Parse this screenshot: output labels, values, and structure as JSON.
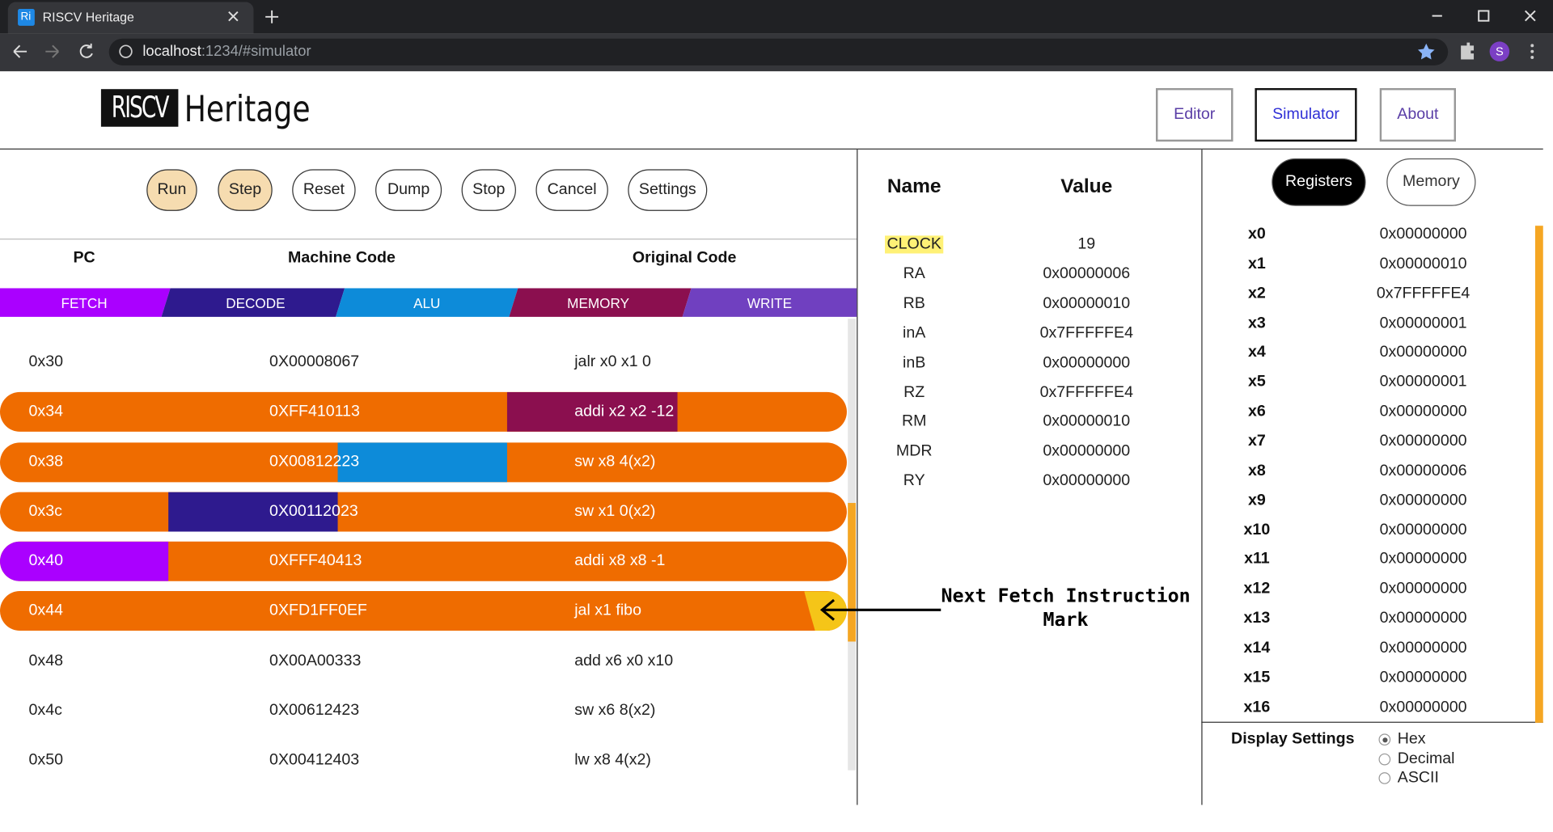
{
  "browser": {
    "favicon": "Ri",
    "tab_title": "RISCV Heritage",
    "url_host": "localhost",
    "url_path": ":1234/#simulator",
    "profile": "S"
  },
  "header": {
    "logo_mark": "RISCV",
    "logo_text": "Heritage",
    "nav": [
      "Editor",
      "Simulator",
      "About"
    ]
  },
  "controls": [
    "Run",
    "Step",
    "Reset",
    "Dump",
    "Stop",
    "Cancel",
    "Settings"
  ],
  "program": {
    "columns": [
      "PC",
      "Machine Code",
      "Original Code"
    ],
    "stages": [
      "FETCH",
      "DECODE",
      "ALU",
      "MEMORY",
      "WRITE"
    ],
    "rows": [
      [
        "0x30",
        "0X00008067",
        "jalr x0 x1 0"
      ],
      [
        "0x34",
        "0XFF410113",
        "addi x2 x2 -12"
      ],
      [
        "0x38",
        "0X00812223",
        "sw x8 4(x2)"
      ],
      [
        "0x3c",
        "0X00112023",
        "sw x1 0(x2)"
      ],
      [
        "0x40",
        "0XFFF40413",
        "addi x8 x8 -1"
      ],
      [
        "0x44",
        "0XFD1FF0EF",
        "jal x1 fibo"
      ],
      [
        "0x48",
        "0X00A00333",
        "add x6 x0 x10"
      ],
      [
        "0x4c",
        "0X00612423",
        "sw x6 8(x2)"
      ],
      [
        "0x50",
        "0X00412403",
        "lw x8 4(x2)"
      ]
    ]
  },
  "annotation": "Next Fetch Instruction Mark",
  "pipeline": {
    "columns": [
      "Name",
      "Value"
    ],
    "rows": [
      [
        "CLOCK",
        "19"
      ],
      [
        "RA",
        "0x00000006"
      ],
      [
        "RB",
        "0x00000010"
      ],
      [
        "inA",
        "0x7FFFFFE4"
      ],
      [
        "inB",
        "0x00000000"
      ],
      [
        "RZ",
        "0x7FFFFFE4"
      ],
      [
        "RM",
        "0x00000010"
      ],
      [
        "MDR",
        "0x00000000"
      ],
      [
        "RY",
        "0x00000000"
      ]
    ]
  },
  "register_tabs": [
    "Registers",
    "Memory"
  ],
  "registers": [
    [
      "x0",
      "0x00000000"
    ],
    [
      "x1",
      "0x00000010"
    ],
    [
      "x2",
      "0x7FFFFFE4"
    ],
    [
      "x3",
      "0x00000001"
    ],
    [
      "x4",
      "0x00000000"
    ],
    [
      "x5",
      "0x00000001"
    ],
    [
      "x6",
      "0x00000000"
    ],
    [
      "x7",
      "0x00000000"
    ],
    [
      "x8",
      "0x00000006"
    ],
    [
      "x9",
      "0x00000000"
    ],
    [
      "x10",
      "0x00000000"
    ],
    [
      "x11",
      "0x00000000"
    ],
    [
      "x12",
      "0x00000000"
    ],
    [
      "x13",
      "0x00000000"
    ],
    [
      "x14",
      "0x00000000"
    ],
    [
      "x15",
      "0x00000000"
    ],
    [
      "x16",
      "0x00000000"
    ]
  ],
  "display_settings": {
    "title": "Display Settings",
    "options": [
      "Hex",
      "Decimal",
      "ASCII"
    ]
  }
}
